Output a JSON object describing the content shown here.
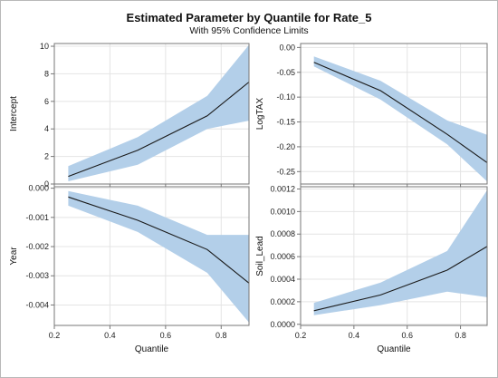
{
  "title": "Estimated Parameter by Quantile for Rate_5",
  "subtitle": "With 95% Confidence Limits",
  "colors": {
    "band": "#b3cfe9",
    "line": "#1a1a1a",
    "grid": "#e4e4e4",
    "axis": "#777777"
  },
  "chart_data": [
    {
      "type": "line",
      "ylabel": "Intercept",
      "xlabel": "",
      "x": [
        0.25,
        0.5,
        0.75,
        0.9
      ],
      "series": [
        {
          "values": [
            0.55,
            2.45,
            4.95,
            7.4
          ]
        }
      ],
      "band_lower": [
        0.2,
        1.4,
        4.0,
        4.6
      ],
      "band_upper": [
        1.3,
        3.4,
        6.4,
        10.1
      ],
      "xlim": [
        0.2,
        0.9
      ],
      "ylim": [
        0,
        10.2
      ],
      "yticks": [
        0,
        2,
        4,
        6,
        8,
        10
      ],
      "ytick_labels": [
        "0",
        "2",
        "4",
        "6",
        "8",
        "10"
      ],
      "xticks": [
        0.2,
        0.4,
        0.6,
        0.8
      ],
      "xtick_labels": []
    },
    {
      "type": "line",
      "ylabel": "LogTAX",
      "xlabel": "",
      "x": [
        0.25,
        0.5,
        0.75,
        0.9
      ],
      "series": [
        {
          "values": [
            -0.03,
            -0.087,
            -0.175,
            -0.232
          ]
        }
      ],
      "band_lower": [
        -0.038,
        -0.105,
        -0.195,
        -0.27
      ],
      "band_upper": [
        -0.018,
        -0.067,
        -0.147,
        -0.176
      ],
      "xlim": [
        0.2,
        0.9
      ],
      "ylim": [
        -0.275,
        0.008
      ],
      "yticks": [
        0.0,
        -0.05,
        -0.1,
        -0.15,
        -0.2,
        -0.25
      ],
      "ytick_labels": [
        "0.00",
        "-0.05",
        "-0.10",
        "-0.15",
        "-0.20",
        "-0.25"
      ],
      "xticks": [
        0.2,
        0.4,
        0.6,
        0.8
      ],
      "xtick_labels": []
    },
    {
      "type": "line",
      "ylabel": "Year",
      "xlabel": "Quantile",
      "x": [
        0.25,
        0.5,
        0.75,
        0.9
      ],
      "series": [
        {
          "values": [
            -0.0003,
            -0.0011,
            -0.0021,
            -0.00325
          ]
        }
      ],
      "band_lower": [
        -0.0006,
        -0.0015,
        -0.0029,
        -0.0046
      ],
      "band_upper": [
        -0.0001,
        -0.0006,
        -0.0016,
        -0.0016
      ],
      "xlim": [
        0.2,
        0.9
      ],
      "ylim": [
        -0.0047,
        5e-05
      ],
      "yticks": [
        0.0,
        -0.001,
        -0.002,
        -0.003,
        -0.004
      ],
      "ytick_labels": [
        "0.000",
        "-0.001",
        "-0.002",
        "-0.003",
        "-0.004"
      ],
      "xticks": [
        0.2,
        0.4,
        0.6,
        0.8
      ],
      "xtick_labels": [
        "0.2",
        "0.4",
        "0.6",
        "0.8"
      ]
    },
    {
      "type": "line",
      "ylabel": "Soil_Lead",
      "xlabel": "Quantile",
      "x": [
        0.25,
        0.5,
        0.75,
        0.9
      ],
      "series": [
        {
          "values": [
            0.00012,
            0.00026,
            0.00048,
            0.00069
          ]
        }
      ],
      "band_lower": [
        8e-05,
        0.00017,
        0.00029,
        0.00024
      ],
      "band_upper": [
        0.00019,
        0.00037,
        0.00065,
        0.00119
      ],
      "xlim": [
        0.2,
        0.9
      ],
      "ylim": [
        -1e-05,
        0.00122
      ],
      "yticks": [
        0.0,
        0.0002,
        0.0004,
        0.0006,
        0.0008,
        0.001,
        0.0012
      ],
      "ytick_labels": [
        "0.0000",
        "0.0002",
        "0.0004",
        "0.0006",
        "0.0008",
        "0.0010",
        "0.0012"
      ],
      "xticks": [
        0.2,
        0.4,
        0.6,
        0.8
      ],
      "xtick_labels": [
        "0.2",
        "0.4",
        "0.6",
        "0.8"
      ]
    }
  ]
}
